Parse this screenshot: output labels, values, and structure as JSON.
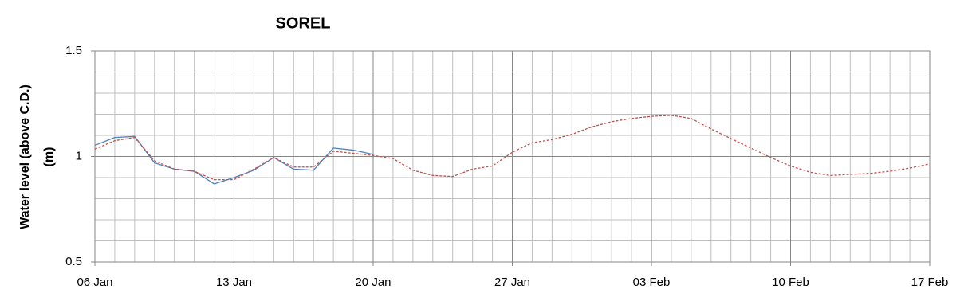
{
  "chart_data": {
    "type": "line",
    "title": "SOREL",
    "ylabel": [
      "Water level (above C.D.)",
      "(m)"
    ],
    "x": [
      "06 Jan",
      "07 Jan",
      "08 Jan",
      "09 Jan",
      "10 Jan",
      "11 Jan",
      "12 Jan",
      "13 Jan",
      "14 Jan",
      "15 Jan",
      "16 Jan",
      "17 Jan",
      "18 Jan",
      "19 Jan",
      "20 Jan",
      "21 Jan",
      "22 Jan",
      "23 Jan",
      "24 Jan",
      "25 Jan",
      "26 Jan",
      "27 Jan",
      "28 Jan",
      "29 Jan",
      "30 Jan",
      "31 Jan",
      "01 Feb",
      "02 Feb",
      "03 Feb",
      "04 Feb",
      "05 Feb",
      "06 Feb",
      "07 Feb",
      "08 Feb",
      "09 Feb",
      "10 Feb",
      "11 Feb",
      "12 Feb",
      "13 Feb",
      "14 Feb",
      "15 Feb",
      "16 Feb",
      "17 Feb"
    ],
    "xticks": [
      "06 Jan",
      "13 Jan",
      "20 Jan",
      "27 Jan",
      "03 Feb",
      "10 Feb",
      "17 Feb"
    ],
    "series": [
      {
        "color": "#4f81bd",
        "dashed": false,
        "values": [
          1.053,
          1.09,
          1.095,
          0.97,
          0.94,
          0.93,
          0.87,
          0.9,
          0.935,
          0.995,
          0.94,
          0.935,
          1.04,
          1.03,
          1.01,
          null,
          null,
          null,
          null,
          null,
          null,
          null,
          null,
          null,
          null,
          null,
          null,
          null,
          null,
          null,
          null,
          null,
          null,
          null,
          null,
          null,
          null,
          null,
          null,
          null,
          null,
          null,
          null
        ]
      },
      {
        "color": "#c0504d",
        "dashed": true,
        "values": [
          1.035,
          1.075,
          1.09,
          0.98,
          0.94,
          0.93,
          0.89,
          0.89,
          0.94,
          0.995,
          0.95,
          0.95,
          1.025,
          1.015,
          1.005,
          0.99,
          0.935,
          0.91,
          0.905,
          0.94,
          0.955,
          1.02,
          1.065,
          1.08,
          1.105,
          1.14,
          1.165,
          1.18,
          1.19,
          1.195,
          1.18,
          1.13,
          1.085,
          1.04,
          0.995,
          0.955,
          0.925,
          0.91,
          0.915,
          0.92,
          0.93,
          0.945,
          0.965
        ]
      }
    ],
    "ylim": [
      0.5,
      1.5
    ],
    "yticks": [
      0.5,
      1,
      1.5
    ],
    "grid": true
  }
}
